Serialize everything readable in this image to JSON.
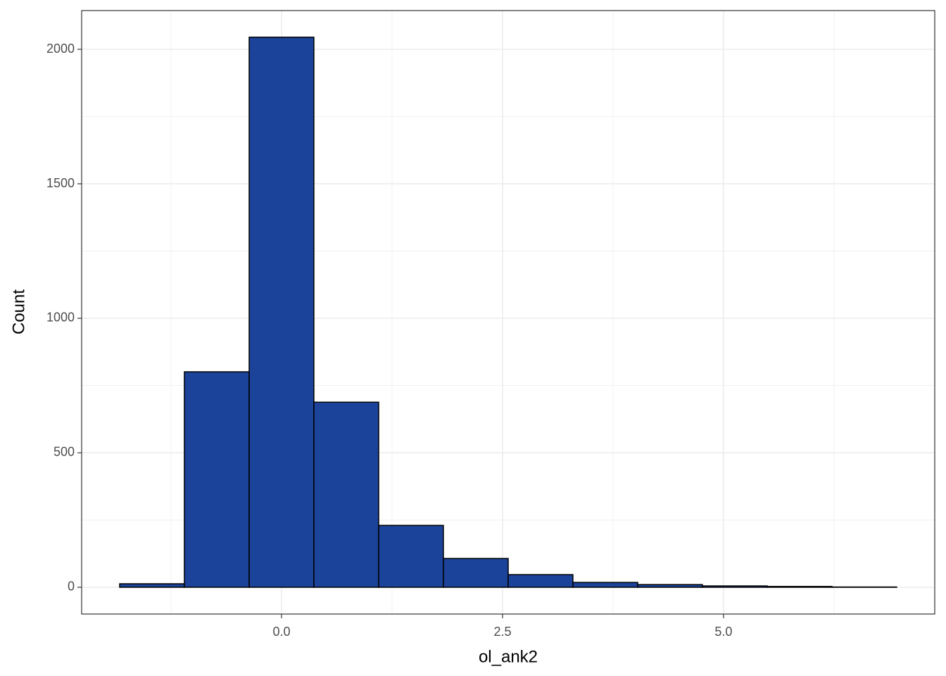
{
  "chart_data": {
    "type": "histogram",
    "x_label": "ol_ank2",
    "y_label": "Count",
    "bins": [
      -1.831,
      -1.099,
      -0.366,
      0.366,
      1.099,
      1.831,
      2.564,
      3.296,
      4.029,
      4.761,
      5.494,
      6.226,
      6.959
    ],
    "values": [
      13,
      801,
      2045,
      688,
      230,
      107,
      47,
      18,
      10,
      5,
      3,
      1
    ],
    "color": "#1a4399",
    "edge_color": "#000000",
    "xlim": [
      -2.261,
      7.389
    ],
    "ylim": [
      -99.5,
      2144
    ],
    "xticks": [
      {
        "value": 0,
        "label": "0.0"
      },
      {
        "value": 2.5,
        "label": "2.5"
      },
      {
        "value": 5,
        "label": "5.0"
      }
    ],
    "yticks": [
      0,
      500,
      1000,
      1500,
      2000
    ],
    "grid": true,
    "minor_grid": true
  }
}
